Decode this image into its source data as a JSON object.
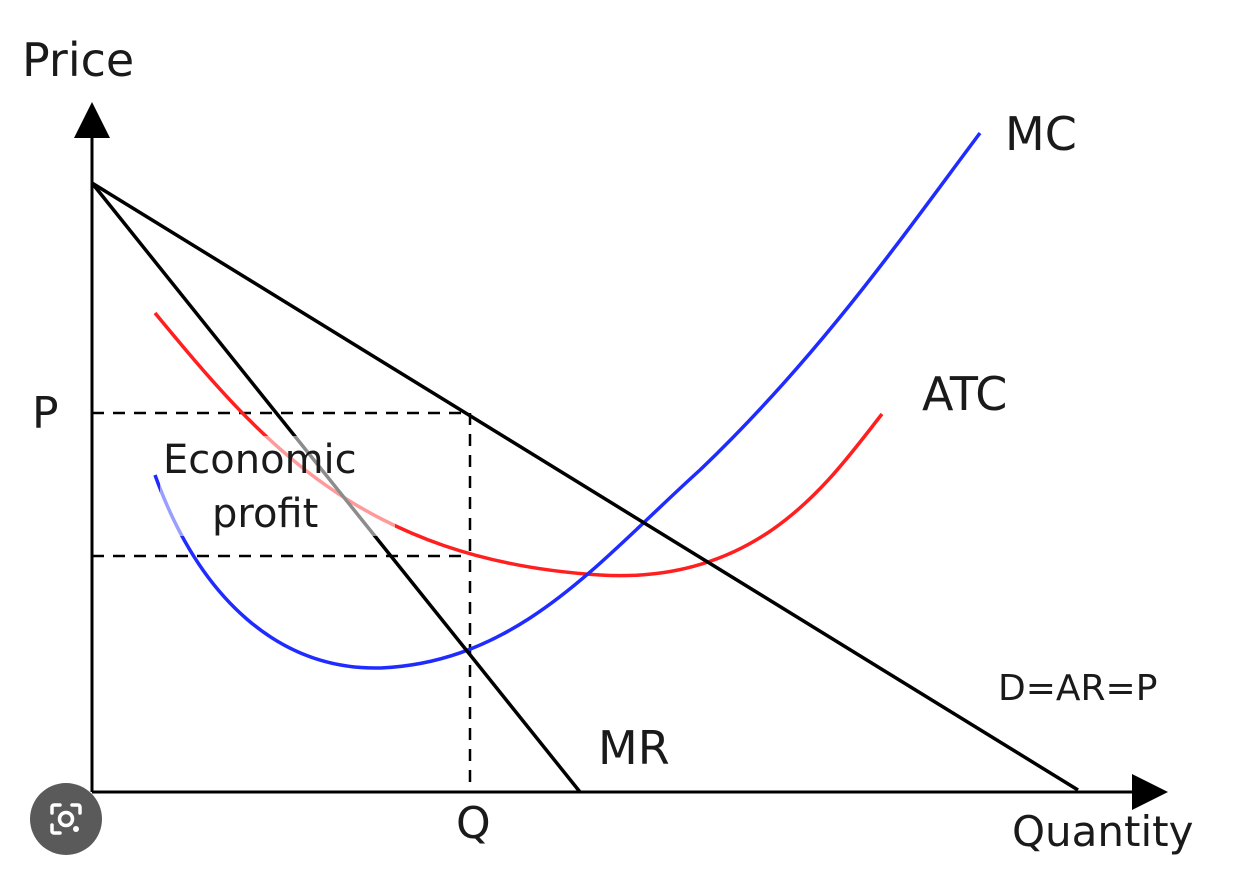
{
  "diagram": {
    "axes": {
      "y_label": "Price",
      "x_label": "Quantity",
      "y_tick": "P",
      "x_tick": "Q"
    },
    "curves": {
      "mc": {
        "label": "MC",
        "color": "#1f2bff"
      },
      "atc": {
        "label": "ATC",
        "color": "#ff1f1f"
      },
      "mr": {
        "label": "MR",
        "color": "#000000"
      },
      "demand": {
        "label": "D=AR=P",
        "color": "#000000"
      }
    },
    "annotation": {
      "line1": "Economic",
      "line2": "profit"
    }
  },
  "overlay": {
    "lens_button_icon": "google-lens-icon"
  }
}
